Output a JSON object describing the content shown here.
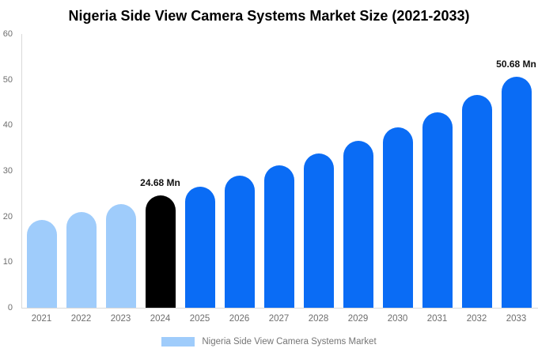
{
  "title": "Nigeria Side View Camera Systems Market Size (2021-2033)",
  "legend": {
    "label": "Nigeria Side View Camera Systems Market",
    "swatch_color": "#9fccfb"
  },
  "colors": {
    "historical_bar": "#9fccfb",
    "base_year_bar": "#000000",
    "forecast_bar": "#0a6cf5",
    "axis_line": "#d9d9d9",
    "tick_text": "#6e6e6e",
    "legend_text": "#757575",
    "data_label_text": "#111111",
    "background": "#ffffff"
  },
  "chart_data": {
    "type": "bar",
    "title": "Nigeria Side View Camera Systems Market Size (2021-2033)",
    "categories": [
      "2021",
      "2022",
      "2023",
      "2024",
      "2025",
      "2026",
      "2027",
      "2028",
      "2029",
      "2030",
      "2031",
      "2032",
      "2033"
    ],
    "series": [
      {
        "name": "Nigeria Side View Camera Systems Market",
        "values": [
          19.2,
          21.0,
          22.7,
          24.68,
          26.6,
          28.9,
          31.3,
          33.9,
          36.6,
          39.5,
          42.8,
          46.6,
          50.68
        ]
      }
    ],
    "unit": "Mn",
    "bar_colors": [
      "#9fccfb",
      "#9fccfb",
      "#9fccfb",
      "#000000",
      "#0a6cf5",
      "#0a6cf5",
      "#0a6cf5",
      "#0a6cf5",
      "#0a6cf5",
      "#0a6cf5",
      "#0a6cf5",
      "#0a6cf5",
      "#0a6cf5"
    ],
    "data_labels": [
      {
        "category": "2024",
        "text": "24.68 Mn"
      },
      {
        "category": "2033",
        "text": "50.68 Mn"
      }
    ],
    "xlabel": "",
    "ylabel": "",
    "ylim": [
      0,
      60
    ],
    "yticks": [
      0,
      10,
      20,
      30,
      40,
      50,
      60
    ],
    "grid": false,
    "legend_position": "bottom"
  }
}
